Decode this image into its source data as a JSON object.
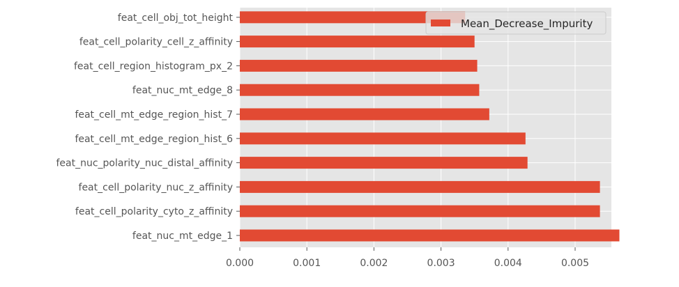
{
  "chart_data": {
    "type": "bar",
    "orientation": "horizontal",
    "categories": [
      "feat_nuc_mt_edge_1",
      "feat_cell_polarity_cyto_z_affinity",
      "feat_cell_polarity_nuc_z_affinity",
      "feat_nuc_polarity_nuc_distal_affinity",
      "feat_cell_mt_edge_region_hist_6",
      "feat_cell_mt_edge_region_hist_7",
      "feat_nuc_mt_edge_8",
      "feat_cell_region_histogram_px_2",
      "feat_cell_polarity_cell_z_affinity",
      "feat_cell_obj_tot_height"
    ],
    "series": [
      {
        "name": "Mean_Decrease_Impurity",
        "values": [
          0.00566,
          0.00537,
          0.00537,
          0.00429,
          0.00426,
          0.00372,
          0.00357,
          0.00354,
          0.0035,
          0.00336
        ]
      }
    ],
    "xticks": [
      "0.000",
      "0.001",
      "0.002",
      "0.003",
      "0.004",
      "0.005"
    ],
    "xlim": [
      0,
      0.006
    ],
    "title": "",
    "xlabel": "",
    "ylabel": "",
    "grid": true,
    "legend_position": "top-right",
    "colors": {
      "bar": "#E24A33",
      "plot_background": "#E5E5E5",
      "grid": "#FFFFFF",
      "tick_label": "#555555",
      "legend_background": "#E5E5E5",
      "legend_border": "#CCCCCC"
    }
  }
}
